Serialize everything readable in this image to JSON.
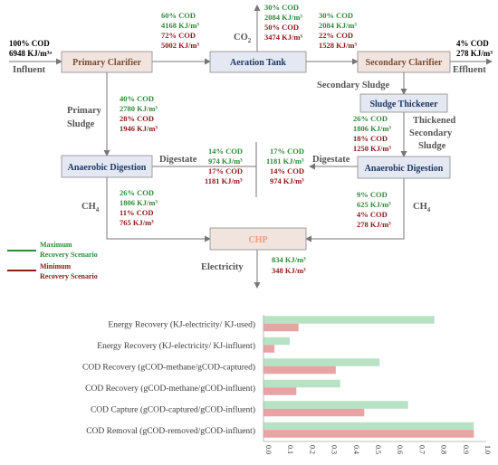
{
  "diagram": {
    "boxes": {
      "primary_clarifier": "Primary Clarifier",
      "aeration_tank": "Aeration Tank",
      "secondary_clarifier": "Secondary Clarifier",
      "sludge_thickener": "Sludge Thickener",
      "anaerobic_digestion_left": "Anaerobic Digestion",
      "anaerobic_digestion_right": "Anaerobic Digestion",
      "chp": "CHP"
    },
    "labels": {
      "influent": "Influent",
      "effluent": "Effluent",
      "co2": "CO",
      "co2_sub": "2",
      "primary_sludge_1": "Primary",
      "primary_sludge_2": "Sludge",
      "secondary_sludge": "Secondary Sludge",
      "thickened_1": "Thickened",
      "thickened_2": "Secondary",
      "thickened_3": "Sludge",
      "digestate_left": "Digestate",
      "digestate_right": "Digestate",
      "ch4_left": "CH",
      "ch4_left_sub": "4",
      "ch4_right": "CH",
      "ch4_right_sub": "4",
      "electricity": "Electricity"
    },
    "flows": {
      "influent_cod": "100% COD",
      "influent_energy": "6948 KJ/m³ᵃ",
      "effluent_cod": "4% COD",
      "effluent_energy": "278 KJ/m³",
      "pc_at_green_1": "60% COD",
      "pc_at_green_2": "4168 KJ/m³",
      "pc_at_red_1": "72% COD",
      "pc_at_red_2": "5002 KJ/m³",
      "co2_green_1": "30% COD",
      "co2_green_2": "2084 KJ/m³",
      "co2_red_1": "50% COD",
      "co2_red_2": "3474 KJ/m³",
      "at_sc_green_1": "30% COD",
      "at_sc_green_2": "2084 KJ/m³",
      "at_sc_red_1": "22% COD",
      "at_sc_red_2": "1528 KJ/m³",
      "ps_green_1": "40% COD",
      "ps_green_2": "2780 KJ/m³",
      "ps_red_1": "28% COD",
      "ps_red_2": "1946 KJ/m³",
      "ts_green_1": "26% COD",
      "ts_green_2": "1806 KJ/m³",
      "ts_red_1": "18% COD",
      "ts_red_2": "1250 KJ/m³",
      "dig_left_green_1": "14% COD",
      "dig_left_green_2": "974 KJ/m³",
      "dig_left_red_1": "17% COD",
      "dig_left_red_2": "1181 KJ/m³",
      "dig_right_green_1": "17% COD",
      "dig_right_green_2": "1181 KJ/m³",
      "dig_right_red_1": "14% COD",
      "dig_right_red_2": "974 KJ/m³",
      "ch4_left_green_1": "26% COD",
      "ch4_left_green_2": "1806 KJ/m³",
      "ch4_left_red_1": "11% COD",
      "ch4_left_red_2": "765 KJ/m³",
      "ch4_right_green_1": "9% COD",
      "ch4_right_green_2": "625 KJ/m³",
      "ch4_right_red_1": "4% COD",
      "ch4_right_red_2": "278 KJ/m³",
      "elec_green": "834 KJ/m³",
      "elec_red": "348 KJ/m³"
    },
    "legend": {
      "max_1": "Maximum",
      "max_2": "Recovery Scenario",
      "min_1": "Minimum",
      "min_2": "Recovery Scenario"
    },
    "colors": {
      "green": "#2e8b3a",
      "red": "#8b1a1a",
      "bar_green": "#b7e2c4",
      "bar_red": "#e8a3a3"
    }
  },
  "chart_data": {
    "type": "bar",
    "orientation": "horizontal",
    "categories": [
      "Energy Recovery (KJ-electricity/ KJ-used)",
      "Energy Recovery (KJ-electricity/ KJ-influent)",
      "COD Recovery (gCOD-methane/gCOD-captured)",
      "COD Recovery (gCOD-methane/gCOD-influent)",
      "COD Capture (gCOD-captured/gCOD-influent)",
      "COD Removal (gCOD-removed/gCOD-influent)"
    ],
    "series": [
      {
        "name": "Maximum Recovery Scenario",
        "values": [
          0.78,
          0.12,
          0.53,
          0.35,
          0.66,
          0.96
        ]
      },
      {
        "name": "Minimum Recovery Scenario",
        "values": [
          0.16,
          0.05,
          0.33,
          0.15,
          0.46,
          0.96
        ]
      }
    ],
    "xlim": [
      0,
      1.0
    ],
    "ticks": [
      "0.0",
      "0.1",
      "0.2",
      "0.3",
      "0.4",
      "0.5",
      "0.6",
      "0.7",
      "0.8",
      "0.9",
      "1.0"
    ]
  }
}
